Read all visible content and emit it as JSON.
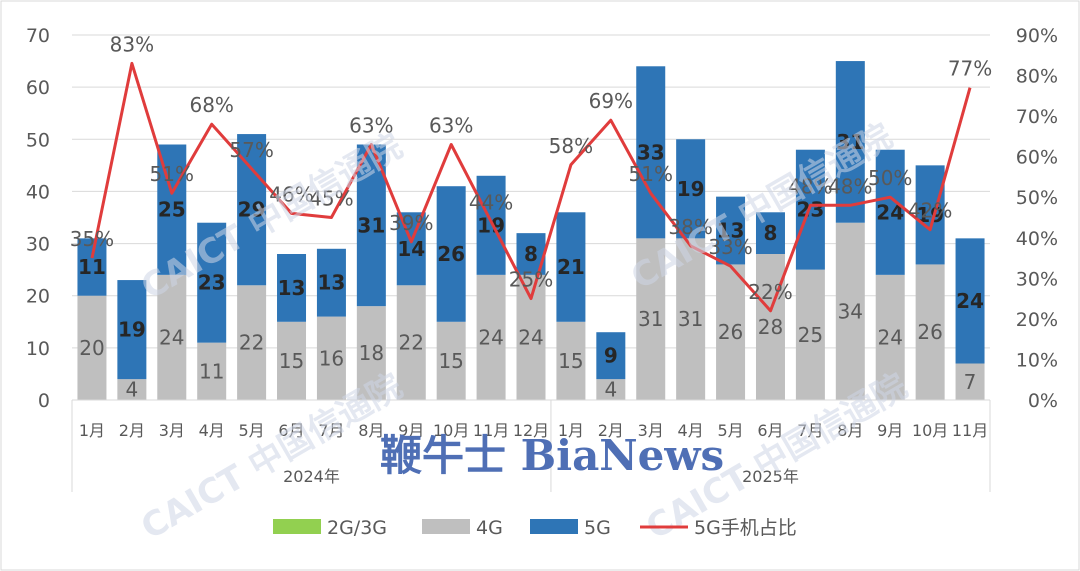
{
  "chart_data": {
    "type": "bar",
    "stacked": true,
    "categories": [
      "1月",
      "2月",
      "3月",
      "4月",
      "5月",
      "6月",
      "7月",
      "8月",
      "9月",
      "10月",
      "11月",
      "12月",
      "1月",
      "2月",
      "3月",
      "4月",
      "5月",
      "6月",
      "7月",
      "8月",
      "9月",
      "10月",
      "11月"
    ],
    "groups": [
      {
        "label": "2024年",
        "count": 12
      },
      {
        "label": "2025年",
        "count": 11
      }
    ],
    "series": [
      {
        "name": "2G/3G",
        "type": "bar",
        "color": "#92d050",
        "values": [
          0,
          0,
          0,
          0,
          0,
          0,
          0,
          0,
          0,
          0,
          0,
          0,
          0,
          0,
          0,
          0,
          0,
          0,
          0,
          0,
          0,
          0,
          0
        ]
      },
      {
        "name": "4G",
        "type": "bar",
        "color": "#bfbfbf",
        "values": [
          20,
          4,
          24,
          11,
          22,
          15,
          16,
          18,
          22,
          15,
          24,
          24,
          15,
          4,
          31,
          31,
          26,
          28,
          25,
          34,
          24,
          26,
          7
        ]
      },
      {
        "name": "5G",
        "type": "bar",
        "color": "#2e75b6",
        "values": [
          11,
          19,
          25,
          23,
          29,
          13,
          13,
          31,
          14,
          26,
          19,
          8,
          21,
          9,
          33,
          19,
          13,
          8,
          23,
          31,
          24,
          19,
          24
        ]
      },
      {
        "name": "5G手机占比",
        "type": "line",
        "axis": "right",
        "color": "#e03c3c",
        "values": [
          35,
          83,
          51,
          68,
          57,
          46,
          45,
          63,
          39,
          63,
          44,
          25,
          58,
          69,
          51,
          38,
          33,
          22,
          48,
          48,
          50,
          42,
          77
        ]
      }
    ],
    "line_labels": [
      "35%",
      "83%",
      "51%",
      "68%",
      "57%",
      "46%",
      "45%",
      "63%",
      "39%",
      "63%",
      "44%",
      "25%",
      "58%",
      "69%",
      "51%",
      "38%",
      "33%",
      "22%",
      "48%",
      "48%",
      "50%",
      "42%",
      "77%"
    ],
    "y_left": {
      "min": 0,
      "max": 70,
      "ticks": [
        "0",
        "10",
        "20",
        "30",
        "40",
        "50",
        "60",
        "70"
      ]
    },
    "y_right": {
      "min": 0,
      "max": 90,
      "ticks": [
        "0%",
        "10%",
        "20%",
        "30%",
        "40%",
        "50%",
        "60%",
        "70%",
        "80%",
        "90%"
      ]
    },
    "legend_position": "bottom",
    "grid": true
  },
  "watermark": {
    "brand_text": "鞭牛士 BiaNews",
    "caict_text": "CAICT 中国信通院"
  }
}
